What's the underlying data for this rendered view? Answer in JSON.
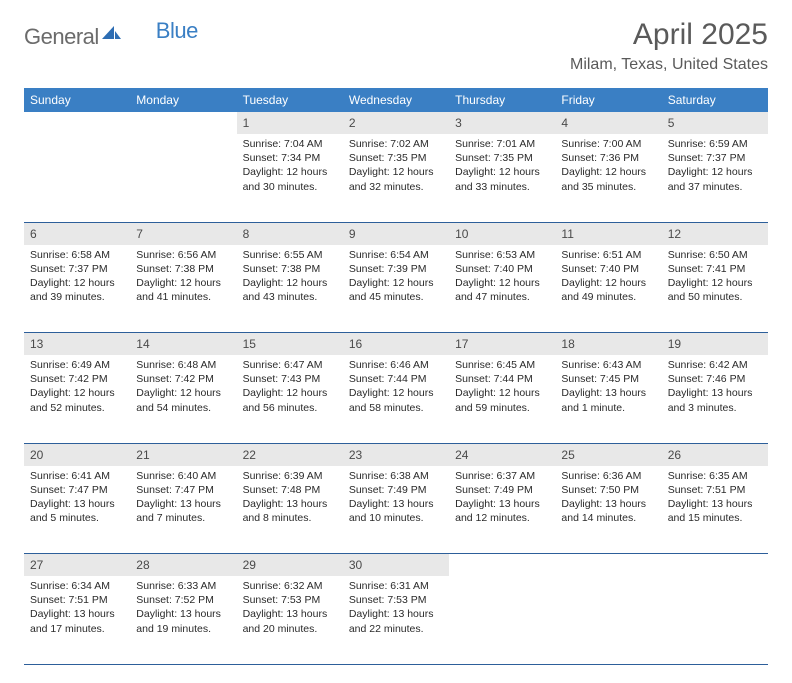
{
  "brand": {
    "general": "General",
    "blue": "Blue",
    "logo_color": "#2d6db3"
  },
  "header": {
    "title": "April 2025",
    "location": "Milam, Texas, United States"
  },
  "styling": {
    "header_bg": "#3a7fc4",
    "header_text": "#ffffff",
    "daynum_bg": "#e8e8e8",
    "row_border": "#2d5f9a",
    "body_text": "#2a2a2a",
    "title_color": "#5a5a5a",
    "font_family": "Arial",
    "daynum_fontsize": 12,
    "cell_fontsize": 10.5,
    "th_fontsize": 12,
    "title_fontsize": 30,
    "location_fontsize": 16
  },
  "weekdays": [
    "Sunday",
    "Monday",
    "Tuesday",
    "Wednesday",
    "Thursday",
    "Friday",
    "Saturday"
  ],
  "weeks": [
    [
      {
        "empty": true
      },
      {
        "empty": true
      },
      {
        "day": "1",
        "sunrise": "Sunrise: 7:04 AM",
        "sunset": "Sunset: 7:34 PM",
        "daylight": "Daylight: 12 hours and 30 minutes."
      },
      {
        "day": "2",
        "sunrise": "Sunrise: 7:02 AM",
        "sunset": "Sunset: 7:35 PM",
        "daylight": "Daylight: 12 hours and 32 minutes."
      },
      {
        "day": "3",
        "sunrise": "Sunrise: 7:01 AM",
        "sunset": "Sunset: 7:35 PM",
        "daylight": "Daylight: 12 hours and 33 minutes."
      },
      {
        "day": "4",
        "sunrise": "Sunrise: 7:00 AM",
        "sunset": "Sunset: 7:36 PM",
        "daylight": "Daylight: 12 hours and 35 minutes."
      },
      {
        "day": "5",
        "sunrise": "Sunrise: 6:59 AM",
        "sunset": "Sunset: 7:37 PM",
        "daylight": "Daylight: 12 hours and 37 minutes."
      }
    ],
    [
      {
        "day": "6",
        "sunrise": "Sunrise: 6:58 AM",
        "sunset": "Sunset: 7:37 PM",
        "daylight": "Daylight: 12 hours and 39 minutes."
      },
      {
        "day": "7",
        "sunrise": "Sunrise: 6:56 AM",
        "sunset": "Sunset: 7:38 PM",
        "daylight": "Daylight: 12 hours and 41 minutes."
      },
      {
        "day": "8",
        "sunrise": "Sunrise: 6:55 AM",
        "sunset": "Sunset: 7:38 PM",
        "daylight": "Daylight: 12 hours and 43 minutes."
      },
      {
        "day": "9",
        "sunrise": "Sunrise: 6:54 AM",
        "sunset": "Sunset: 7:39 PM",
        "daylight": "Daylight: 12 hours and 45 minutes."
      },
      {
        "day": "10",
        "sunrise": "Sunrise: 6:53 AM",
        "sunset": "Sunset: 7:40 PM",
        "daylight": "Daylight: 12 hours and 47 minutes."
      },
      {
        "day": "11",
        "sunrise": "Sunrise: 6:51 AM",
        "sunset": "Sunset: 7:40 PM",
        "daylight": "Daylight: 12 hours and 49 minutes."
      },
      {
        "day": "12",
        "sunrise": "Sunrise: 6:50 AM",
        "sunset": "Sunset: 7:41 PM",
        "daylight": "Daylight: 12 hours and 50 minutes."
      }
    ],
    [
      {
        "day": "13",
        "sunrise": "Sunrise: 6:49 AM",
        "sunset": "Sunset: 7:42 PM",
        "daylight": "Daylight: 12 hours and 52 minutes."
      },
      {
        "day": "14",
        "sunrise": "Sunrise: 6:48 AM",
        "sunset": "Sunset: 7:42 PM",
        "daylight": "Daylight: 12 hours and 54 minutes."
      },
      {
        "day": "15",
        "sunrise": "Sunrise: 6:47 AM",
        "sunset": "Sunset: 7:43 PM",
        "daylight": "Daylight: 12 hours and 56 minutes."
      },
      {
        "day": "16",
        "sunrise": "Sunrise: 6:46 AM",
        "sunset": "Sunset: 7:44 PM",
        "daylight": "Daylight: 12 hours and 58 minutes."
      },
      {
        "day": "17",
        "sunrise": "Sunrise: 6:45 AM",
        "sunset": "Sunset: 7:44 PM",
        "daylight": "Daylight: 12 hours and 59 minutes."
      },
      {
        "day": "18",
        "sunrise": "Sunrise: 6:43 AM",
        "sunset": "Sunset: 7:45 PM",
        "daylight": "Daylight: 13 hours and 1 minute."
      },
      {
        "day": "19",
        "sunrise": "Sunrise: 6:42 AM",
        "sunset": "Sunset: 7:46 PM",
        "daylight": "Daylight: 13 hours and 3 minutes."
      }
    ],
    [
      {
        "day": "20",
        "sunrise": "Sunrise: 6:41 AM",
        "sunset": "Sunset: 7:47 PM",
        "daylight": "Daylight: 13 hours and 5 minutes."
      },
      {
        "day": "21",
        "sunrise": "Sunrise: 6:40 AM",
        "sunset": "Sunset: 7:47 PM",
        "daylight": "Daylight: 13 hours and 7 minutes."
      },
      {
        "day": "22",
        "sunrise": "Sunrise: 6:39 AM",
        "sunset": "Sunset: 7:48 PM",
        "daylight": "Daylight: 13 hours and 8 minutes."
      },
      {
        "day": "23",
        "sunrise": "Sunrise: 6:38 AM",
        "sunset": "Sunset: 7:49 PM",
        "daylight": "Daylight: 13 hours and 10 minutes."
      },
      {
        "day": "24",
        "sunrise": "Sunrise: 6:37 AM",
        "sunset": "Sunset: 7:49 PM",
        "daylight": "Daylight: 13 hours and 12 minutes."
      },
      {
        "day": "25",
        "sunrise": "Sunrise: 6:36 AM",
        "sunset": "Sunset: 7:50 PM",
        "daylight": "Daylight: 13 hours and 14 minutes."
      },
      {
        "day": "26",
        "sunrise": "Sunrise: 6:35 AM",
        "sunset": "Sunset: 7:51 PM",
        "daylight": "Daylight: 13 hours and 15 minutes."
      }
    ],
    [
      {
        "day": "27",
        "sunrise": "Sunrise: 6:34 AM",
        "sunset": "Sunset: 7:51 PM",
        "daylight": "Daylight: 13 hours and 17 minutes."
      },
      {
        "day": "28",
        "sunrise": "Sunrise: 6:33 AM",
        "sunset": "Sunset: 7:52 PM",
        "daylight": "Daylight: 13 hours and 19 minutes."
      },
      {
        "day": "29",
        "sunrise": "Sunrise: 6:32 AM",
        "sunset": "Sunset: 7:53 PM",
        "daylight": "Daylight: 13 hours and 20 minutes."
      },
      {
        "day": "30",
        "sunrise": "Sunrise: 6:31 AM",
        "sunset": "Sunset: 7:53 PM",
        "daylight": "Daylight: 13 hours and 22 minutes."
      },
      {
        "empty": true
      },
      {
        "empty": true
      },
      {
        "empty": true
      }
    ]
  ]
}
